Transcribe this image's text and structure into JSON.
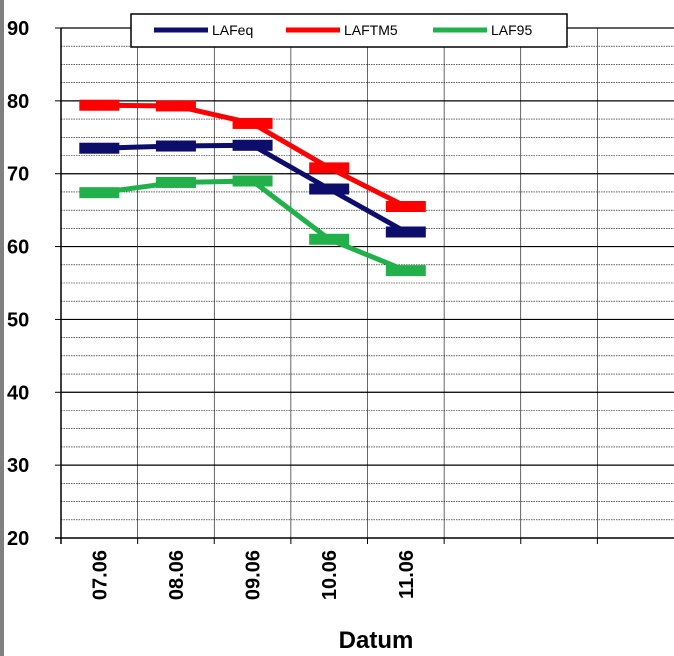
{
  "chart_data": {
    "type": "line",
    "title": "",
    "xlabel": "Datum",
    "ylabel": "",
    "categories": [
      "07.06",
      "08.06",
      "09.06",
      "10.06",
      "11.06"
    ],
    "ylim": [
      20,
      90
    ],
    "yticks": [
      20,
      30,
      40,
      50,
      60,
      70,
      80,
      90
    ],
    "minor_grid_step": 2.5,
    "x_slots": 8,
    "grid": true,
    "legend_position": "top",
    "series": [
      {
        "name": "LAFeq",
        "color": "#0d0d6b",
        "values": [
          73.5,
          73.8,
          73.9,
          67.9,
          62.0
        ]
      },
      {
        "name": "LAFTM5",
        "color": "#ff0000",
        "values": [
          79.4,
          79.3,
          76.9,
          70.8,
          65.5
        ]
      },
      {
        "name": "LAF95",
        "color": "#22b04a",
        "values": [
          67.4,
          68.8,
          69.0,
          61.0,
          56.7
        ]
      }
    ]
  }
}
